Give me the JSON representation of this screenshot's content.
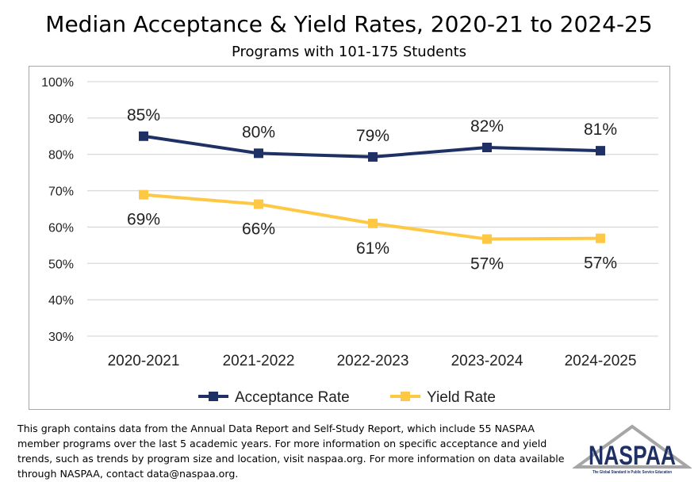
{
  "chart_data": {
    "type": "line",
    "title": "Median Acceptance & Yield Rates, 2020-21 to 2024-25",
    "subtitle": "Programs with 101-175 Students",
    "categories": [
      "2020-2021",
      "2021-2022",
      "2022-2023",
      "2023-2024",
      "2024-2025"
    ],
    "ylim": [
      30,
      100
    ],
    "yticks": [
      "30%",
      "40%",
      "50%",
      "60%",
      "70%",
      "80%",
      "90%",
      "100%"
    ],
    "grid": true,
    "legend_position": "bottom",
    "series": [
      {
        "name": "Acceptance Rate",
        "color": "#1f3064",
        "values": [
          85,
          80.3,
          79.3,
          81.9,
          81.0
        ],
        "labels": [
          "85%",
          "80%",
          "79%",
          "82%",
          "81%"
        ]
      },
      {
        "name": "Yield Rate",
        "color": "#ffc844",
        "values": [
          68.9,
          66.3,
          61.0,
          56.7,
          56.9
        ],
        "labels": [
          "69%",
          "66%",
          "61%",
          "57%",
          "57%"
        ]
      }
    ]
  },
  "footnote": "This graph contains data from the Annual Data Report and Self-Study Report, which include 55 NASPAA member programs over the last 5 academic years. For more information on specific acceptance and yield trends, such as trends by program size and location, visit naspaa.org. For more information on data available through NASPAA, contact data@naspaa.org.",
  "logo": {
    "text": "NASPAA",
    "tagline": "The Global Standard in Public Service Education"
  }
}
